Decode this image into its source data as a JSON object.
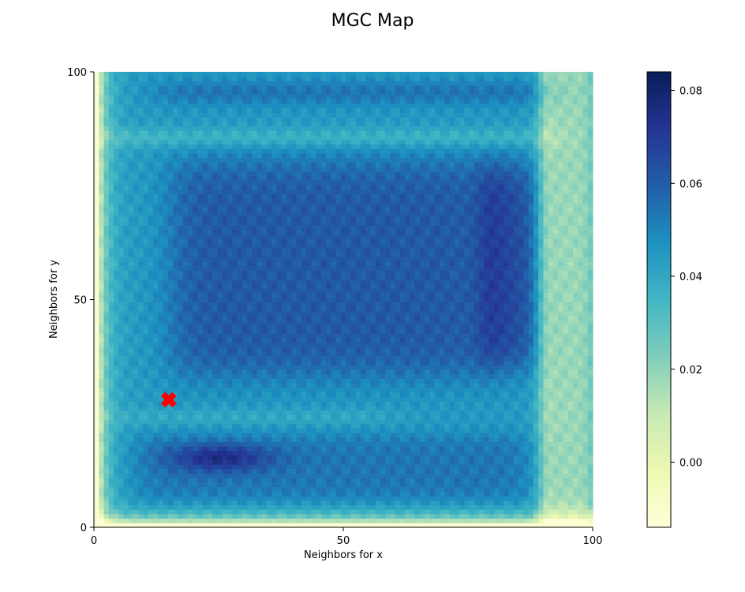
{
  "chart_data": {
    "type": "heatmap",
    "title": "MGC Map",
    "xlabel": "Neighbors for x",
    "ylabel": "Neighbors for y",
    "x_range": [
      0,
      100
    ],
    "y_range": [
      0,
      100
    ],
    "x_ticks": [
      0,
      50,
      100
    ],
    "y_ticks": [
      0,
      50,
      100
    ],
    "grid": false,
    "colormap": "YlGnBu",
    "colormap_stops": [
      "#ffffd9",
      "#edf8b1",
      "#c7e9b4",
      "#7fcdbb",
      "#41b6c4",
      "#1d91c0",
      "#225ea8",
      "#253494",
      "#081d58"
    ],
    "colorbar": {
      "range": [
        -0.014,
        0.084
      ],
      "ticks": [
        0.0,
        0.02,
        0.04,
        0.06,
        0.08
      ],
      "tick_labels": [
        "0.00",
        "0.02",
        "0.04",
        "0.06",
        "0.08"
      ]
    },
    "optimal_scale_marker": {
      "x": 15,
      "y": 28,
      "marker": "X",
      "color": "#ff0000"
    },
    "structure": {
      "grid_size": 101,
      "background_value": 0.047,
      "low_value_edges": "left column and bottom row near -0.01; right band x 90-100 near 0.02",
      "high_value_regions": "central block x 15-90, y 35-80 near 0.06; bottom band y 12-18 peaks near 0.08 at x 20-30; right band x 78-90, y 35-80 near 0.065"
    }
  }
}
